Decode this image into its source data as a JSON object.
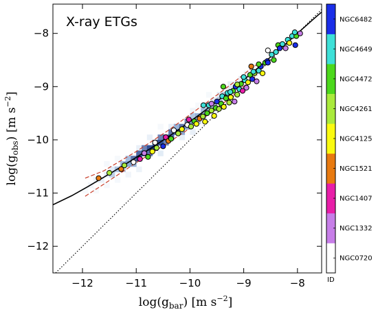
{
  "chart_data": {
    "type": "scatter",
    "title": "X-ray ETGs",
    "xlabel": "log(g_bar) [m s^-2]",
    "ylabel": "log(g_obs) [m s^-2]",
    "xlim": [
      -12.55,
      -7.55
    ],
    "ylim": [
      -12.5,
      -7.45
    ],
    "xticks": [
      -12,
      -11,
      -10,
      -9,
      -8
    ],
    "yticks": [
      -12,
      -11,
      -10,
      -9,
      -8
    ],
    "xtick_labels": [
      "−12",
      "−11",
      "−10",
      "−9",
      "−8"
    ],
    "ytick_labels": [
      "−12",
      "−11",
      "−10",
      "−9",
      "−8"
    ],
    "grid": false,
    "colorbar": {
      "label": "ID",
      "galaxies": [
        "NGC0720",
        "NGC1332",
        "NGC1407",
        "NGC1521",
        "NGC4125",
        "NGC4261",
        "NGC4472",
        "NGC4649",
        "NGC6482"
      ],
      "colors": [
        "#ffffff",
        "#c77ee8",
        "#e81ea8",
        "#e87a10",
        "#fafa10",
        "#aaea3c",
        "#4cd81c",
        "#3ee0d8",
        "#1a2ee8"
      ]
    },
    "reference_lines": [
      {
        "name": "RAR fit",
        "style": "solid",
        "color": "#000000",
        "x": [
          -12.55,
          -12.2,
          -11.9,
          -11.6,
          -11.3,
          -11.0,
          -10.7,
          -10.4,
          -10.1,
          -9.8,
          -9.5,
          -9.2,
          -8.9,
          -8.6,
          -8.3,
          -8.0,
          -7.7,
          -7.55
        ],
        "y": [
          -11.22,
          -11.05,
          -10.88,
          -10.7,
          -10.52,
          -10.33,
          -10.14,
          -9.94,
          -9.73,
          -9.51,
          -9.28,
          -9.04,
          -8.79,
          -8.53,
          -8.27,
          -8.0,
          -7.73,
          -7.6
        ]
      },
      {
        "name": "unity",
        "style": "dotted",
        "color": "#000000",
        "x": [
          -12.5,
          -7.55
        ],
        "y": [
          -12.5,
          -7.55
        ]
      },
      {
        "name": "upper",
        "style": "dashed",
        "color": "#c83c28",
        "x": [
          -11.95,
          -11.6,
          -11.3,
          -11.0,
          -10.7,
          -10.4,
          -10.1,
          -9.8,
          -9.5,
          -9.2,
          -8.9,
          -8.75
        ],
        "y": [
          -10.72,
          -10.58,
          -10.4,
          -10.22,
          -10.02,
          -9.82,
          -9.6,
          -9.38,
          -9.16,
          -8.93,
          -8.69,
          -8.58
        ]
      },
      {
        "name": "lower",
        "style": "dashed",
        "color": "#c83c28",
        "x": [
          -11.95,
          -11.6,
          -11.3,
          -11.0,
          -10.7,
          -10.4,
          -10.1,
          -9.8,
          -9.5,
          -9.2,
          -8.9,
          -8.75
        ],
        "y": [
          -11.06,
          -10.83,
          -10.63,
          -10.43,
          -10.24,
          -10.05,
          -9.85,
          -9.63,
          -9.41,
          -9.17,
          -8.91,
          -8.78
        ]
      }
    ],
    "density": {
      "description_free": true,
      "cells": [
        [
          -11.9,
          -10.9,
          0.1
        ],
        [
          -11.8,
          -10.8,
          0.12
        ],
        [
          -11.7,
          -10.8,
          0.15
        ],
        [
          -11.6,
          -10.7,
          0.18
        ],
        [
          -11.5,
          -10.7,
          0.25
        ],
        [
          -11.5,
          -10.6,
          0.2
        ],
        [
          -11.4,
          -10.6,
          0.3
        ],
        [
          -11.3,
          -10.5,
          0.38
        ],
        [
          -11.3,
          -10.6,
          0.25
        ],
        [
          -11.2,
          -10.5,
          0.45
        ],
        [
          -11.2,
          -10.4,
          0.35
        ],
        [
          -11.1,
          -10.4,
          0.55
        ],
        [
          -11.1,
          -10.5,
          0.4
        ],
        [
          -11.0,
          -10.3,
          0.6
        ],
        [
          -11.0,
          -10.4,
          0.7
        ],
        [
          -10.9,
          -10.3,
          0.75
        ],
        [
          -10.9,
          -10.2,
          0.5
        ],
        [
          -10.8,
          -10.2,
          0.7
        ],
        [
          -10.8,
          -10.3,
          0.55
        ],
        [
          -10.7,
          -10.1,
          0.6
        ],
        [
          -10.7,
          -10.2,
          0.75
        ],
        [
          -10.6,
          -10.1,
          0.7
        ],
        [
          -10.6,
          -10.0,
          0.5
        ],
        [
          -10.5,
          -10.0,
          0.65
        ],
        [
          -10.5,
          -10.1,
          0.5
        ],
        [
          -10.4,
          -9.9,
          0.55
        ],
        [
          -10.4,
          -10.0,
          0.6
        ],
        [
          -10.3,
          -9.9,
          0.6
        ],
        [
          -10.3,
          -9.8,
          0.4
        ],
        [
          -10.2,
          -9.8,
          0.55
        ],
        [
          -10.2,
          -9.9,
          0.45
        ],
        [
          -10.1,
          -9.7,
          0.5
        ],
        [
          -10.1,
          -9.8,
          0.45
        ],
        [
          -10.0,
          -9.7,
          0.45
        ],
        [
          -10.0,
          -9.6,
          0.3
        ],
        [
          -9.9,
          -9.6,
          0.4
        ],
        [
          -9.9,
          -9.7,
          0.3
        ],
        [
          -9.8,
          -9.5,
          0.35
        ],
        [
          -9.8,
          -9.6,
          0.3
        ],
        [
          -9.7,
          -9.5,
          0.35
        ],
        [
          -9.7,
          -9.4,
          0.25
        ],
        [
          -9.6,
          -9.4,
          0.3
        ],
        [
          -9.6,
          -9.3,
          0.2
        ],
        [
          -9.5,
          -9.3,
          0.3
        ],
        [
          -9.5,
          -9.2,
          0.2
        ],
        [
          -9.4,
          -9.2,
          0.25
        ],
        [
          -9.3,
          -9.1,
          0.2
        ],
        [
          -9.3,
          -9.0,
          0.15
        ],
        [
          -9.2,
          -9.0,
          0.2
        ],
        [
          -9.1,
          -8.9,
          0.15
        ],
        [
          -9.0,
          -8.8,
          0.12
        ],
        [
          -8.9,
          -8.8,
          0.1
        ],
        [
          -12.0,
          -11.0,
          0.06
        ],
        [
          -11.8,
          -11.0,
          0.06
        ],
        [
          -11.6,
          -10.5,
          0.07
        ],
        [
          -11.4,
          -10.8,
          0.07
        ],
        [
          -11.2,
          -10.7,
          0.1
        ],
        [
          -11.0,
          -10.6,
          0.12
        ],
        [
          -11.0,
          -10.2,
          0.15
        ],
        [
          -10.8,
          -10.0,
          0.15
        ],
        [
          -10.6,
          -10.3,
          0.2
        ],
        [
          -10.4,
          -9.8,
          0.15
        ],
        [
          -10.2,
          -10.0,
          0.15
        ],
        [
          -10.0,
          -9.5,
          0.1
        ],
        [
          -10.0,
          -9.9,
          0.15
        ],
        [
          -9.8,
          -9.4,
          0.08
        ],
        [
          -9.6,
          -9.5,
          0.12
        ],
        [
          -9.4,
          -9.1,
          0.08
        ],
        [
          -9.2,
          -9.1,
          0.1
        ],
        [
          -11.6,
          -10.9,
          0.07
        ],
        [
          -11.4,
          -10.4,
          0.06
        ],
        [
          -10.6,
          -9.8,
          0.06
        ],
        [
          -9.9,
          -9.4,
          0.06
        ],
        [
          -9.7,
          -9.2,
          0.06
        ]
      ]
    },
    "points": [
      {
        "x": -11.7,
        "y": -10.72,
        "c": 3
      },
      {
        "x": -11.5,
        "y": -10.62,
        "c": 5
      },
      {
        "x": -11.28,
        "y": -10.55,
        "c": 3
      },
      {
        "x": -11.22,
        "y": -10.48,
        "c": 5
      },
      {
        "x": -11.05,
        "y": -10.42,
        "c": 0
      },
      {
        "x": -10.93,
        "y": -10.36,
        "c": 2
      },
      {
        "x": -10.85,
        "y": -10.25,
        "c": 1
      },
      {
        "x": -10.78,
        "y": -10.32,
        "c": 6
      },
      {
        "x": -10.7,
        "y": -10.22,
        "c": 4
      },
      {
        "x": -10.65,
        "y": -10.05,
        "c": 0
      },
      {
        "x": -10.62,
        "y": -10.15,
        "c": 5
      },
      {
        "x": -10.5,
        "y": -10.12,
        "c": 8
      },
      {
        "x": -10.45,
        "y": -9.95,
        "c": 2
      },
      {
        "x": -10.4,
        "y": -10.02,
        "c": 3
      },
      {
        "x": -10.35,
        "y": -9.98,
        "c": 6
      },
      {
        "x": -10.3,
        "y": -9.82,
        "c": 0
      },
      {
        "x": -10.22,
        "y": -9.88,
        "c": 5
      },
      {
        "x": -10.15,
        "y": -9.8,
        "c": 4
      },
      {
        "x": -10.05,
        "y": -9.72,
        "c": 0
      },
      {
        "x": -10.02,
        "y": -9.62,
        "c": 2
      },
      {
        "x": -9.98,
        "y": -9.75,
        "c": 5
      },
      {
        "x": -9.92,
        "y": -9.65,
        "c": 6
      },
      {
        "x": -9.88,
        "y": -9.7,
        "c": 4
      },
      {
        "x": -9.82,
        "y": -9.6,
        "c": 3
      },
      {
        "x": -9.76,
        "y": -9.56,
        "c": 5
      },
      {
        "x": -9.72,
        "y": -9.66,
        "c": 4
      },
      {
        "x": -9.68,
        "y": -9.5,
        "c": 6
      },
      {
        "x": -9.65,
        "y": -9.35,
        "c": 7
      },
      {
        "x": -9.6,
        "y": -9.45,
        "c": 5
      },
      {
        "x": -9.55,
        "y": -9.55,
        "c": 4
      },
      {
        "x": -9.52,
        "y": -9.4,
        "c": 6
      },
      {
        "x": -9.5,
        "y": -9.28,
        "c": 8
      },
      {
        "x": -9.46,
        "y": -9.42,
        "c": 5
      },
      {
        "x": -9.42,
        "y": -9.32,
        "c": 6
      },
      {
        "x": -9.4,
        "y": -9.18,
        "c": 7
      },
      {
        "x": -9.37,
        "y": -9.38,
        "c": 4
      },
      {
        "x": -9.33,
        "y": -9.22,
        "c": 6
      },
      {
        "x": -9.3,
        "y": -9.12,
        "c": 7
      },
      {
        "x": -9.27,
        "y": -9.3,
        "c": 5
      },
      {
        "x": -9.24,
        "y": -9.2,
        "c": 4
      },
      {
        "x": -9.2,
        "y": -9.08,
        "c": 6
      },
      {
        "x": -9.17,
        "y": -9.28,
        "c": 1
      },
      {
        "x": -9.15,
        "y": -9.0,
        "c": 8
      },
      {
        "x": -9.12,
        "y": -9.15,
        "c": 5
      },
      {
        "x": -9.08,
        "y": -9.05,
        "c": 7
      },
      {
        "x": -9.05,
        "y": -8.95,
        "c": 6
      },
      {
        "x": -9.02,
        "y": -9.08,
        "c": 2
      },
      {
        "x": -8.98,
        "y": -8.88,
        "c": 7
      },
      {
        "x": -8.95,
        "y": -9.02,
        "c": 1
      },
      {
        "x": -8.92,
        "y": -8.92,
        "c": 4
      },
      {
        "x": -8.88,
        "y": -8.78,
        "c": 6
      },
      {
        "x": -8.86,
        "y": -8.62,
        "c": 3
      },
      {
        "x": -8.84,
        "y": -8.86,
        "c": 8
      },
      {
        "x": -8.8,
        "y": -8.75,
        "c": 5
      },
      {
        "x": -8.76,
        "y": -8.9,
        "c": 1
      },
      {
        "x": -8.72,
        "y": -8.7,
        "c": 7
      },
      {
        "x": -8.68,
        "y": -8.62,
        "c": 8
      },
      {
        "x": -8.65,
        "y": -8.75,
        "c": 4
      },
      {
        "x": -8.6,
        "y": -8.55,
        "c": 6
      },
      {
        "x": -8.56,
        "y": -8.52,
        "c": 8
      },
      {
        "x": -8.55,
        "y": -8.32,
        "c": 0
      },
      {
        "x": -8.48,
        "y": -8.4,
        "c": 7
      },
      {
        "x": -8.44,
        "y": -8.5,
        "c": 6
      },
      {
        "x": -8.4,
        "y": -8.35,
        "c": 7
      },
      {
        "x": -8.36,
        "y": -8.22,
        "c": 6
      },
      {
        "x": -8.33,
        "y": -8.28,
        "c": 8
      },
      {
        "x": -8.28,
        "y": -8.2,
        "c": 7
      },
      {
        "x": -8.22,
        "y": -8.28,
        "c": 1
      },
      {
        "x": -8.18,
        "y": -8.12,
        "c": 7
      },
      {
        "x": -8.15,
        "y": -8.18,
        "c": 4
      },
      {
        "x": -8.1,
        "y": -8.05,
        "c": 7
      },
      {
        "x": -8.04,
        "y": -8.22,
        "c": 8
      },
      {
        "x": -8.02,
        "y": -8.05,
        "c": 6
      },
      {
        "x": -7.95,
        "y": -8.0,
        "c": 1
      },
      {
        "x": -8.05,
        "y": -7.98,
        "c": 7
      },
      {
        "x": -8.55,
        "y": -8.55,
        "c": 8
      },
      {
        "x": -9.0,
        "y": -8.82,
        "c": 7
      },
      {
        "x": -9.38,
        "y": -9.0,
        "c": 6
      },
      {
        "x": -9.75,
        "y": -9.35,
        "c": 7
      },
      {
        "x": -9.6,
        "y": -9.32,
        "c": 1
      },
      {
        "x": -9.12,
        "y": -8.96,
        "c": 5
      },
      {
        "x": -8.82,
        "y": -8.72,
        "c": 7
      },
      {
        "x": -8.72,
        "y": -8.58,
        "c": 6
      },
      {
        "x": -9.25,
        "y": -9.1,
        "c": 7
      }
    ]
  }
}
